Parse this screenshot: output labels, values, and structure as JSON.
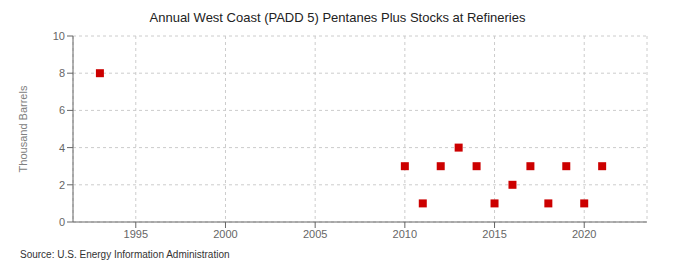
{
  "chart_data": {
    "type": "scatter",
    "title": "Annual West Coast (PADD 5) Pentanes Plus Stocks at Refineries",
    "y_label": "Thousand Barrels",
    "annotation": "Source: U.S. Energy Information Administration",
    "x": [
      1993,
      2010,
      2011,
      2012,
      2013,
      2014,
      2015,
      2016,
      2017,
      2018,
      2019,
      2020,
      2021
    ],
    "values": [
      8,
      3,
      1,
      3,
      4,
      3,
      1,
      2,
      3,
      1,
      3,
      1,
      3
    ],
    "color": "#cc0000",
    "marker": "square",
    "xlim": [
      1991.5,
      2023.5
    ],
    "ylim": [
      0,
      10
    ],
    "xticks": [
      1995,
      2000,
      2005,
      2010,
      2015,
      2020
    ],
    "yticks": [
      0,
      2,
      4,
      6,
      8,
      10
    ],
    "grid": true
  }
}
